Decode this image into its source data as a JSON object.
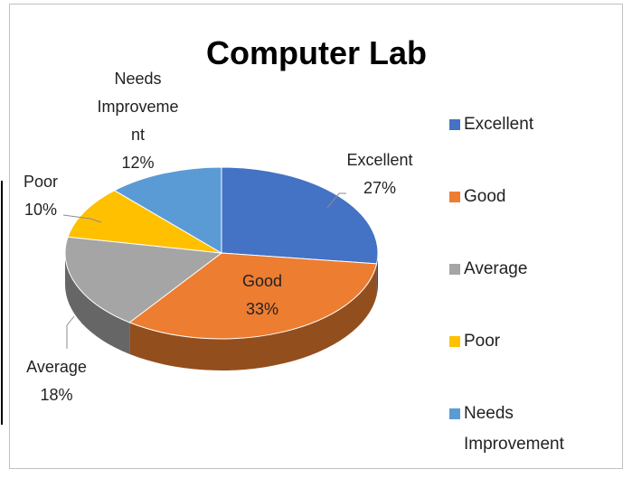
{
  "chart_data": {
    "type": "pie",
    "title": "Computer Lab",
    "categories": [
      "Excellent",
      "Good",
      "Average",
      "Poor",
      "Needs Improvement"
    ],
    "values": [
      27,
      33,
      18,
      10,
      12
    ],
    "value_labels": [
      "27%",
      "33%",
      "18%",
      "10%",
      "12%"
    ],
    "colors": [
      "#4472c4",
      "#ed7d31",
      "#a5a5a5",
      "#ffc000",
      "#5b9bd5"
    ],
    "legend": "right"
  }
}
